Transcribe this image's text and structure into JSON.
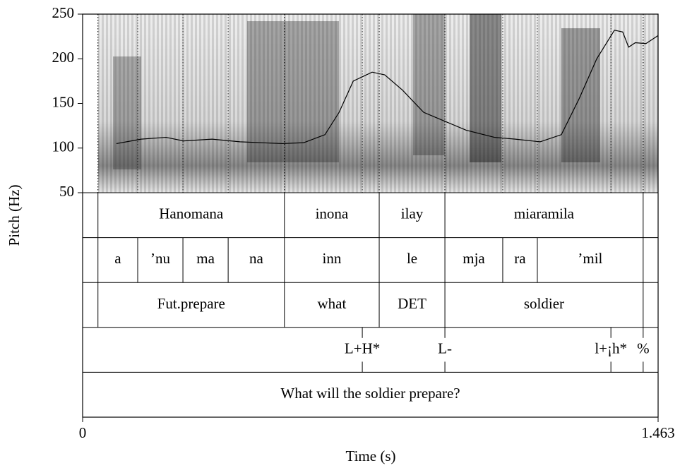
{
  "chart_data": {
    "type": "line",
    "x_label": "Time (s)",
    "y_label": "Pitch (Hz)",
    "color": "#000000",
    "xlim": [
      0,
      1.463
    ],
    "ylim": [
      50,
      250
    ],
    "xticks": [
      0,
      1.463
    ],
    "yticks": [
      50,
      100,
      150,
      200,
      250
    ],
    "x": [
      0.086,
      0.149,
      0.212,
      0.257,
      0.329,
      0.4,
      0.508,
      0.562,
      0.616,
      0.652,
      0.688,
      0.736,
      0.768,
      0.813,
      0.867,
      0.921,
      0.975,
      1.047,
      1.1,
      1.163,
      1.217,
      1.262,
      1.307,
      1.352,
      1.373,
      1.388,
      1.405,
      1.432,
      1.463
    ],
    "values": [
      105,
      110,
      112,
      108,
      110,
      107,
      105,
      106,
      115,
      140,
      175,
      185,
      182,
      165,
      140,
      130,
      120,
      112,
      110,
      107,
      115,
      155,
      200,
      232,
      230,
      213,
      218,
      217,
      226
    ]
  },
  "tiers": [
    {
      "type": "interval",
      "boundaries": [
        0.039,
        0.513,
        0.754,
        0.921,
        1.425
      ],
      "labels": [
        null,
        "Hanomana",
        "inona",
        "ilay",
        "miaramila",
        null
      ]
    },
    {
      "type": "interval",
      "boundaries": [
        0.039,
        0.14,
        0.255,
        0.37,
        0.513,
        0.754,
        0.921,
        1.068,
        1.156,
        1.425
      ],
      "labels": [
        null,
        "a",
        "’nu",
        "ma",
        "na",
        "inn",
        "le",
        "mja",
        "ra",
        "’mil",
        null
      ]
    },
    {
      "type": "interval",
      "boundaries": [
        0.039,
        0.513,
        0.754,
        0.921,
        1.425
      ],
      "labels": [
        null,
        "Fut.prepare",
        "what",
        "DET",
        "soldier",
        null
      ]
    },
    {
      "type": "point",
      "times": [
        0.711,
        0.921,
        1.343,
        1.425
      ],
      "labels": [
        "L+H*",
        "L-",
        "l+¡h*",
        "%"
      ]
    },
    {
      "type": "interval",
      "boundaries": [],
      "labels": [
        "What will the soldier prepare?"
      ]
    }
  ]
}
